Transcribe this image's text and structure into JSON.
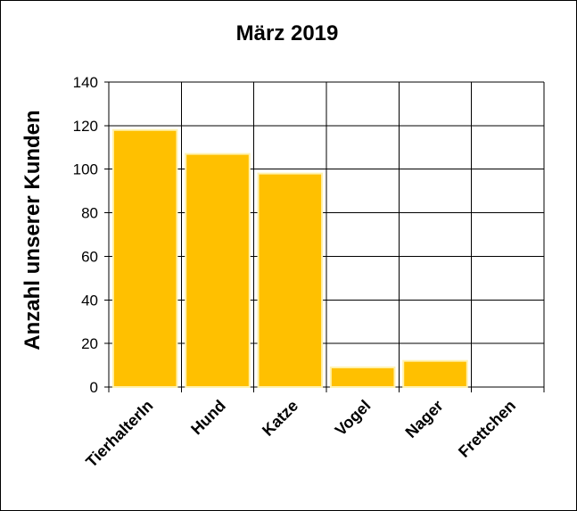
{
  "chart_data": {
    "type": "bar",
    "title": "März 2019",
    "ylabel": "Anzahl unserer Kunden",
    "xlabel": "",
    "categories": [
      "TierhalterIn",
      "Hund",
      "Katze",
      "Vogel",
      "Nager",
      "Frettchen"
    ],
    "values": [
      118,
      107,
      98,
      9,
      12,
      0
    ],
    "ylim": [
      0,
      140
    ],
    "yticks": [
      "0",
      "20",
      "40",
      "60",
      "80",
      "100",
      "120",
      "140"
    ],
    "grid": true,
    "legend": "none",
    "colors": {
      "bar_fill": "#FFC000",
      "bar_stroke": "#FFF2B0",
      "grid": "#000000",
      "plot_background": "#FFFFFF"
    }
  }
}
